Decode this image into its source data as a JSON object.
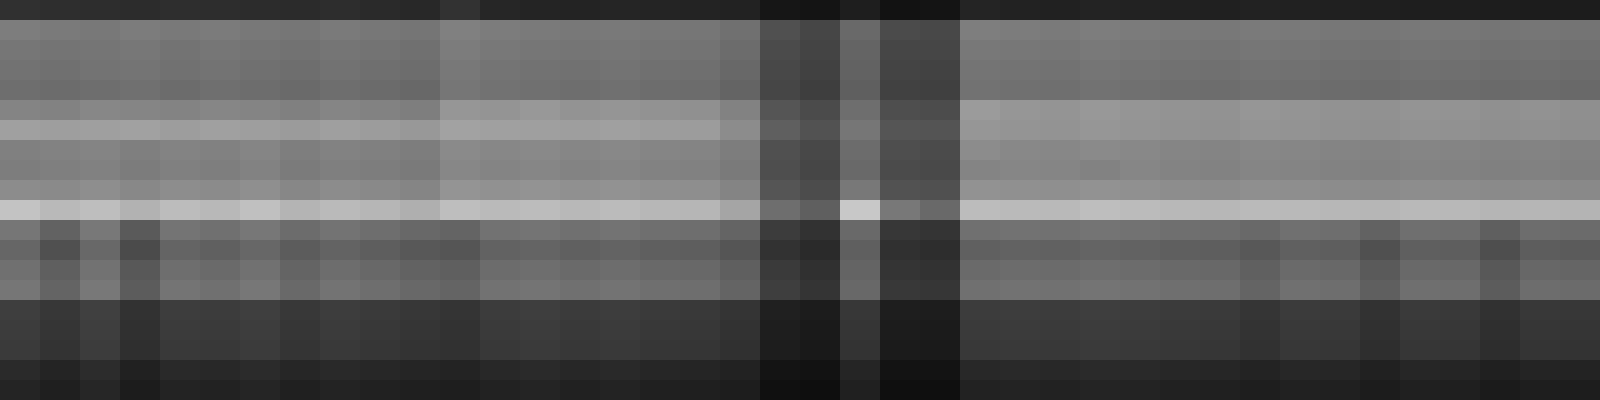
{
  "chart_data": {
    "type": "heatmap",
    "tick_labels": false,
    "color_range": [
      0,
      255
    ],
    "values": [
      [
        48,
        46,
        45,
        44,
        46,
        45,
        44,
        43,
        45,
        42,
        40,
        50,
        38,
        36,
        35,
        37,
        36,
        35,
        34,
        22,
        20,
        30,
        18,
        20,
        36,
        34,
        33,
        35,
        34,
        33,
        32,
        34,
        33,
        32,
        31,
        30,
        30,
        29,
        28,
        28
      ],
      [
        125,
        122,
        120,
        124,
        121,
        123,
        120,
        118,
        122,
        119,
        117,
        128,
        124,
        122,
        120,
        121,
        119,
        118,
        112,
        80,
        70,
        105,
        75,
        72,
        126,
        124,
        122,
        125,
        123,
        121,
        120,
        122,
        121,
        119,
        118,
        120,
        119,
        117,
        118,
        116
      ],
      [
        118,
        116,
        117,
        119,
        115,
        118,
        116,
        114,
        117,
        115,
        112,
        124,
        120,
        118,
        117,
        118,
        116,
        115,
        108,
        75,
        68,
        100,
        70,
        70,
        120,
        119,
        118,
        121,
        119,
        117,
        116,
        118,
        117,
        115,
        114,
        116,
        115,
        113,
        114,
        112
      ],
      [
        114,
        112,
        115,
        116,
        113,
        115,
        112,
        110,
        114,
        111,
        109,
        120,
        116,
        114,
        113,
        115,
        112,
        111,
        104,
        72,
        65,
        98,
        68,
        66,
        116,
        115,
        114,
        117,
        115,
        113,
        112,
        114,
        113,
        111,
        110,
        112,
        111,
        109,
        110,
        108
      ],
      [
        110,
        108,
        110,
        112,
        108,
        111,
        109,
        106,
        110,
        107,
        104,
        118,
        114,
        112,
        110,
        112,
        109,
        108,
        100,
        70,
        62,
        95,
        65,
        64,
        114,
        112,
        111,
        114,
        112,
        110,
        109,
        111,
        110,
        108,
        107,
        109,
        108,
        106,
        107,
        105
      ],
      [
        132,
        130,
        135,
        133,
        131,
        134,
        132,
        128,
        133,
        130,
        126,
        150,
        148,
        152,
        147,
        149,
        146,
        144,
        130,
        85,
        75,
        110,
        78,
        76,
        155,
        150,
        148,
        152,
        149,
        147,
        146,
        150,
        148,
        146,
        145,
        148,
        147,
        144,
        146,
        143
      ],
      [
        160,
        158,
        159,
        161,
        157,
        160,
        158,
        155,
        159,
        156,
        152,
        162,
        160,
        159,
        158,
        160,
        157,
        156,
        140,
        95,
        82,
        118,
        85,
        84,
        150,
        148,
        147,
        150,
        148,
        146,
        145,
        148,
        147,
        145,
        144,
        146,
        145,
        143,
        144,
        142
      ],
      [
        128,
        130,
        132,
        127,
        131,
        129,
        133,
        126,
        130,
        128,
        125,
        138,
        135,
        137,
        134,
        136,
        133,
        132,
        125,
        80,
        72,
        108,
        78,
        75,
        140,
        136,
        135,
        138,
        136,
        133,
        132,
        135,
        134,
        132,
        131,
        133,
        132,
        130,
        131,
        129
      ],
      [
        125,
        127,
        129,
        124,
        128,
        126,
        130,
        123,
        127,
        125,
        122,
        135,
        132,
        134,
        131,
        133,
        130,
        129,
        122,
        78,
        70,
        105,
        75,
        73,
        132,
        134,
        133,
        130,
        134,
        131,
        130,
        133,
        132,
        130,
        129,
        131,
        130,
        128,
        129,
        127
      ],
      [
        140,
        138,
        142,
        136,
        141,
        139,
        143,
        135,
        140,
        137,
        133,
        148,
        145,
        147,
        144,
        146,
        143,
        142,
        132,
        85,
        76,
        120,
        82,
        80,
        146,
        144,
        143,
        146,
        144,
        141,
        140,
        143,
        142,
        140,
        139,
        141,
        140,
        138,
        139,
        137
      ],
      [
        195,
        185,
        190,
        178,
        188,
        184,
        192,
        180,
        186,
        182,
        175,
        190,
        186,
        188,
        184,
        187,
        183,
        182,
        165,
        110,
        95,
        200,
        120,
        105,
        188,
        186,
        185,
        190,
        187,
        184,
        183,
        186,
        185,
        183,
        182,
        185,
        184,
        181,
        182,
        180
      ],
      [
        118,
        98,
        120,
        90,
        116,
        112,
        119,
        108,
        115,
        110,
        104,
        100,
        114,
        116,
        112,
        115,
        111,
        110,
        100,
        60,
        50,
        105,
        55,
        52,
        112,
        114,
        113,
        116,
        114,
        111,
        110,
        105,
        112,
        110,
        98,
        111,
        110,
        95,
        109,
        107
      ],
      [
        102,
        80,
        104,
        75,
        100,
        96,
        103,
        92,
        99,
        94,
        88,
        85,
        98,
        100,
        96,
        99,
        95,
        94,
        85,
        50,
        42,
        95,
        48,
        45,
        96,
        98,
        97,
        100,
        98,
        95,
        94,
        88,
        96,
        94,
        80,
        95,
        94,
        78,
        93,
        91
      ],
      [
        112,
        95,
        114,
        88,
        110,
        106,
        113,
        100,
        109,
        104,
        98,
        95,
        108,
        110,
        106,
        109,
        105,
        104,
        95,
        58,
        48,
        100,
        52,
        50,
        106,
        108,
        107,
        110,
        108,
        105,
        104,
        96,
        106,
        104,
        90,
        105,
        104,
        88,
        103,
        101
      ],
      [
        118,
        100,
        120,
        92,
        116,
        112,
        119,
        105,
        115,
        110,
        104,
        100,
        114,
        116,
        112,
        115,
        111,
        110,
        100,
        62,
        52,
        104,
        56,
        54,
        112,
        114,
        113,
        116,
        114,
        111,
        110,
        100,
        112,
        110,
        95,
        111,
        110,
        92,
        109,
        107
      ],
      [
        62,
        55,
        64,
        50,
        61,
        60,
        63,
        56,
        61,
        58,
        55,
        52,
        60,
        62,
        59,
        61,
        58,
        57,
        52,
        32,
        28,
        55,
        30,
        29,
        60,
        61,
        60,
        62,
        61,
        59,
        58,
        53,
        59,
        58,
        50,
        58,
        57,
        49,
        56,
        55
      ],
      [
        60,
        53,
        62,
        48,
        59,
        58,
        61,
        54,
        59,
        56,
        53,
        50,
        58,
        60,
        57,
        59,
        56,
        55,
        50,
        30,
        26,
        53,
        28,
        27,
        58,
        59,
        58,
        60,
        59,
        57,
        56,
        51,
        57,
        56,
        48,
        56,
        55,
        47,
        54,
        53
      ],
      [
        58,
        51,
        60,
        47,
        57,
        56,
        59,
        52,
        57,
        54,
        51,
        49,
        56,
        58,
        55,
        57,
        54,
        53,
        48,
        29,
        25,
        51,
        27,
        26,
        56,
        57,
        56,
        58,
        57,
        55,
        54,
        49,
        55,
        54,
        46,
        54,
        53,
        45,
        52,
        51
      ],
      [
        42,
        36,
        44,
        33,
        41,
        40,
        43,
        38,
        41,
        39,
        37,
        35,
        40,
        42,
        39,
        41,
        38,
        37,
        34,
        20,
        18,
        37,
        19,
        19,
        40,
        41,
        40,
        42,
        41,
        39,
        38,
        35,
        39,
        38,
        33,
        38,
        37,
        32,
        36,
        35
      ],
      [
        36,
        31,
        38,
        28,
        35,
        34,
        37,
        32,
        35,
        33,
        31,
        30,
        34,
        36,
        33,
        35,
        32,
        31,
        29,
        16,
        14,
        32,
        15,
        15,
        34,
        35,
        34,
        36,
        35,
        33,
        32,
        30,
        33,
        32,
        28,
        32,
        31,
        27,
        30,
        29
      ]
    ]
  }
}
